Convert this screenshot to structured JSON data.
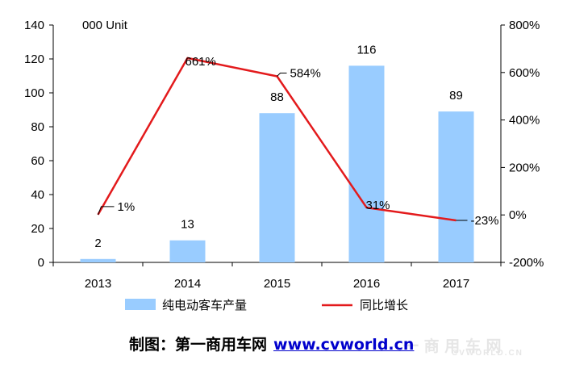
{
  "chart_data": {
    "type": "bar",
    "categories": [
      "2013",
      "2014",
      "2015",
      "2016",
      "2017"
    ],
    "unit_label": "000 Unit",
    "series": [
      {
        "name": "纯电动客车产量",
        "type": "bar",
        "axis": "left",
        "values": [
          2,
          13,
          88,
          116,
          89
        ],
        "labels": [
          "2",
          "13",
          "88",
          "116",
          "89"
        ],
        "color": "#99ccff"
      },
      {
        "name": "同比增长",
        "type": "line",
        "axis": "right",
        "values": [
          1,
          661,
          584,
          31,
          -23
        ],
        "labels": [
          "1%",
          "661%",
          "584%",
          "31%",
          "-23%"
        ],
        "color": "#e31a1c"
      }
    ],
    "y_left": {
      "min": 0,
      "max": 140,
      "ticks": [
        "0",
        "20",
        "40",
        "60",
        "80",
        "100",
        "120",
        "140"
      ]
    },
    "y_right": {
      "min": -200,
      "max": 800,
      "ticks": [
        "-200%",
        "0%",
        "200%",
        "400%",
        "600%",
        "800%"
      ]
    },
    "legend": {
      "position": "bottom"
    },
    "grid": false
  },
  "footer": {
    "credit": "制图：第一商用车网",
    "url": "www.cvworld.cn",
    "watermark": "一 商 用 车 网",
    "watermark_sub": "CVWORLD.CN"
  }
}
